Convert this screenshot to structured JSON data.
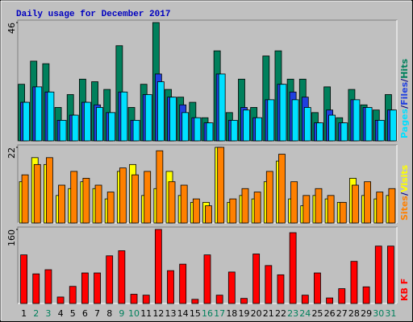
{
  "title": "Daily usage for December 2017",
  "categories": [
    "1",
    "2",
    "3",
    "4",
    "5",
    "6",
    "7",
    "8",
    "9",
    "10",
    "11",
    "12",
    "13",
    "14",
    "15",
    "16",
    "17",
    "18",
    "19",
    "20",
    "21",
    "22",
    "23",
    "24",
    "25",
    "26",
    "27",
    "28",
    "29",
    "30",
    "31"
  ],
  "category_colors": [
    "#000000",
    "#00805C",
    "#00805C",
    "#000000",
    "#000000",
    "#000000",
    "#000000",
    "#000000",
    "#00805C",
    "#00805C",
    "#000000",
    "#000000",
    "#000000",
    "#000000",
    "#000000",
    "#00805C",
    "#00805C",
    "#000000",
    "#000000",
    "#000000",
    "#000000",
    "#000000",
    "#00805C",
    "#00805C",
    "#000000",
    "#000000",
    "#000000",
    "#000000",
    "#000000",
    "#00805C",
    "#00805C"
  ],
  "chart_data": [
    {
      "type": "bar",
      "ylim": [
        0,
        46
      ],
      "yticks": [
        46
      ],
      "legend_separator": "/",
      "series": [
        {
          "name": "Pages",
          "color": "#00E0FF",
          "values": [
            15,
            21,
            19,
            8,
            10,
            15,
            13,
            11,
            19,
            8,
            18,
            23,
            17,
            11,
            9,
            7,
            26,
            8,
            12,
            9,
            16,
            22,
            16,
            13,
            7,
            10,
            7,
            16,
            13,
            8,
            12
          ]
        },
        {
          "name": "Files",
          "color": "#2040E0",
          "values": [
            15,
            21,
            19,
            8,
            10,
            15,
            14,
            11,
            19,
            8,
            18,
            26,
            17,
            14,
            9,
            7,
            26,
            8,
            13,
            9,
            16,
            22,
            19,
            17,
            7,
            12,
            7,
            16,
            13,
            8,
            12
          ]
        },
        {
          "name": "Hits",
          "color": "#00805C",
          "values": [
            22,
            31,
            30,
            13,
            18,
            24,
            23,
            20,
            37,
            13,
            22,
            46,
            20,
            17,
            15,
            9,
            35,
            11,
            24,
            13,
            33,
            35,
            24,
            24,
            11,
            21,
            9,
            20,
            14,
            12,
            18
          ]
        }
      ]
    },
    {
      "type": "bar",
      "ylim": [
        0,
        22
      ],
      "yticks": [
        22
      ],
      "legend_separator": "/",
      "series": [
        {
          "name": "Sites",
          "color": "#FF8000",
          "values": [
            14,
            17,
            19,
            11,
            15,
            13,
            11,
            9,
            16,
            14,
            15,
            21,
            12,
            11,
            7,
            5,
            22,
            7,
            10,
            9,
            15,
            20,
            12,
            8,
            10,
            8,
            6,
            11,
            12,
            9,
            10
          ]
        },
        {
          "name": "Visits",
          "color": "#FFFF00",
          "values": [
            12,
            19,
            17,
            8,
            10,
            12,
            10,
            7,
            15,
            17,
            8,
            10,
            15,
            8,
            6,
            6,
            22,
            6,
            8,
            7,
            12,
            18,
            7,
            5,
            8,
            7,
            6,
            13,
            8,
            7,
            8
          ]
        }
      ]
    },
    {
      "type": "bar",
      "ylim": [
        0,
        160
      ],
      "yticks": [
        160
      ],
      "series": [
        {
          "name": "KB F",
          "color": "#FF0000",
          "values": [
            105,
            64,
            73,
            14,
            37,
            66,
            66,
            103,
            114,
            20,
            18,
            160,
            71,
            85,
            9,
            105,
            18,
            68,
            11,
            107,
            82,
            62,
            153,
            18,
            66,
            12,
            32,
            91,
            36,
            124,
            124
          ]
        }
      ]
    }
  ]
}
